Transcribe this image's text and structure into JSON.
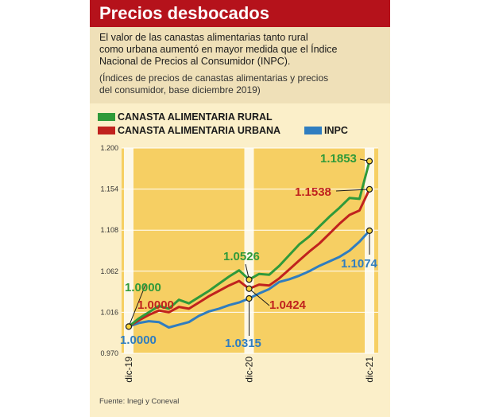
{
  "header": {
    "title": "Precios desbocados",
    "description_lines": [
      "El valor de las canastas alimentarias tanto rural",
      "como urbana aumentó en mayor medida que el Índice",
      "Nacional de Precios al Consumidor (INPC)."
    ],
    "note_lines": [
      "(Índices de precios de canastas alimentarias y precios",
      "del consumidor, base diciembre 2019)"
    ]
  },
  "source": "Fuente: Inegi y Coneval",
  "colors": {
    "title_bar": "#b5121b",
    "background": "#fbefc9",
    "rural": "#2f9a3a",
    "urbana": "#c0221e",
    "inpc": "#2f7dc0"
  },
  "chart_data": {
    "type": "line",
    "x_labels": [
      "dic-19",
      "dic-20",
      "dic-21"
    ],
    "x": [
      "dic-19",
      "ene-20",
      "feb-20",
      "mar-20",
      "abr-20",
      "may-20",
      "jun-20",
      "jul-20",
      "ago-20",
      "sep-20",
      "oct-20",
      "nov-20",
      "dic-20",
      "ene-21",
      "feb-21",
      "mar-21",
      "abr-21",
      "may-21",
      "jun-21",
      "jul-21",
      "ago-21",
      "sep-21",
      "oct-21",
      "nov-21",
      "dic-21"
    ],
    "ylim": [
      0.97,
      1.2
    ],
    "y_ticks": [
      "0.970",
      "1.016",
      "1.062",
      "1.108",
      "1.154",
      "1.200"
    ],
    "series": [
      {
        "name": "CANASTA ALIMENTARIA RURAL",
        "color": "#2f9a3a",
        "values": [
          1.0,
          1.009,
          1.016,
          1.023,
          1.02,
          1.03,
          1.026,
          1.033,
          1.04,
          1.048,
          1.056,
          1.063,
          1.0526,
          1.059,
          1.058,
          1.068,
          1.08,
          1.092,
          1.101,
          1.112,
          1.123,
          1.133,
          1.144,
          1.143,
          1.1853
        ]
      },
      {
        "name": "CANASTA ALIMENTARIA URBANA",
        "color": "#c0221e",
        "values": [
          1.0,
          1.007,
          1.013,
          1.018,
          1.016,
          1.022,
          1.02,
          1.027,
          1.034,
          1.04,
          1.046,
          1.051,
          1.0424,
          1.047,
          1.046,
          1.054,
          1.064,
          1.074,
          1.084,
          1.093,
          1.104,
          1.115,
          1.125,
          1.13,
          1.1538
        ]
      },
      {
        "name": "INPC",
        "color": "#2f7dc0",
        "values": [
          1.0,
          1.004,
          1.006,
          1.005,
          0.999,
          1.002,
          1.005,
          1.012,
          1.017,
          1.02,
          1.024,
          1.027,
          1.0315,
          1.037,
          1.042,
          1.05,
          1.053,
          1.057,
          1.062,
          1.068,
          1.073,
          1.078,
          1.085,
          1.095,
          1.1074
        ]
      }
    ],
    "annotations": [
      {
        "series": 0,
        "index": 0,
        "text": "1.0000"
      },
      {
        "series": 1,
        "index": 0,
        "text": "1.0000"
      },
      {
        "series": 2,
        "index": 0,
        "text": "1.0000"
      },
      {
        "series": 0,
        "index": 12,
        "text": "1.0526"
      },
      {
        "series": 1,
        "index": 12,
        "text": "1.0424"
      },
      {
        "series": 2,
        "index": 12,
        "text": "1.0315"
      },
      {
        "series": 0,
        "index": 24,
        "text": "1.1853"
      },
      {
        "series": 1,
        "index": 24,
        "text": "1.1538"
      },
      {
        "series": 2,
        "index": 24,
        "text": "1.1074"
      }
    ]
  }
}
